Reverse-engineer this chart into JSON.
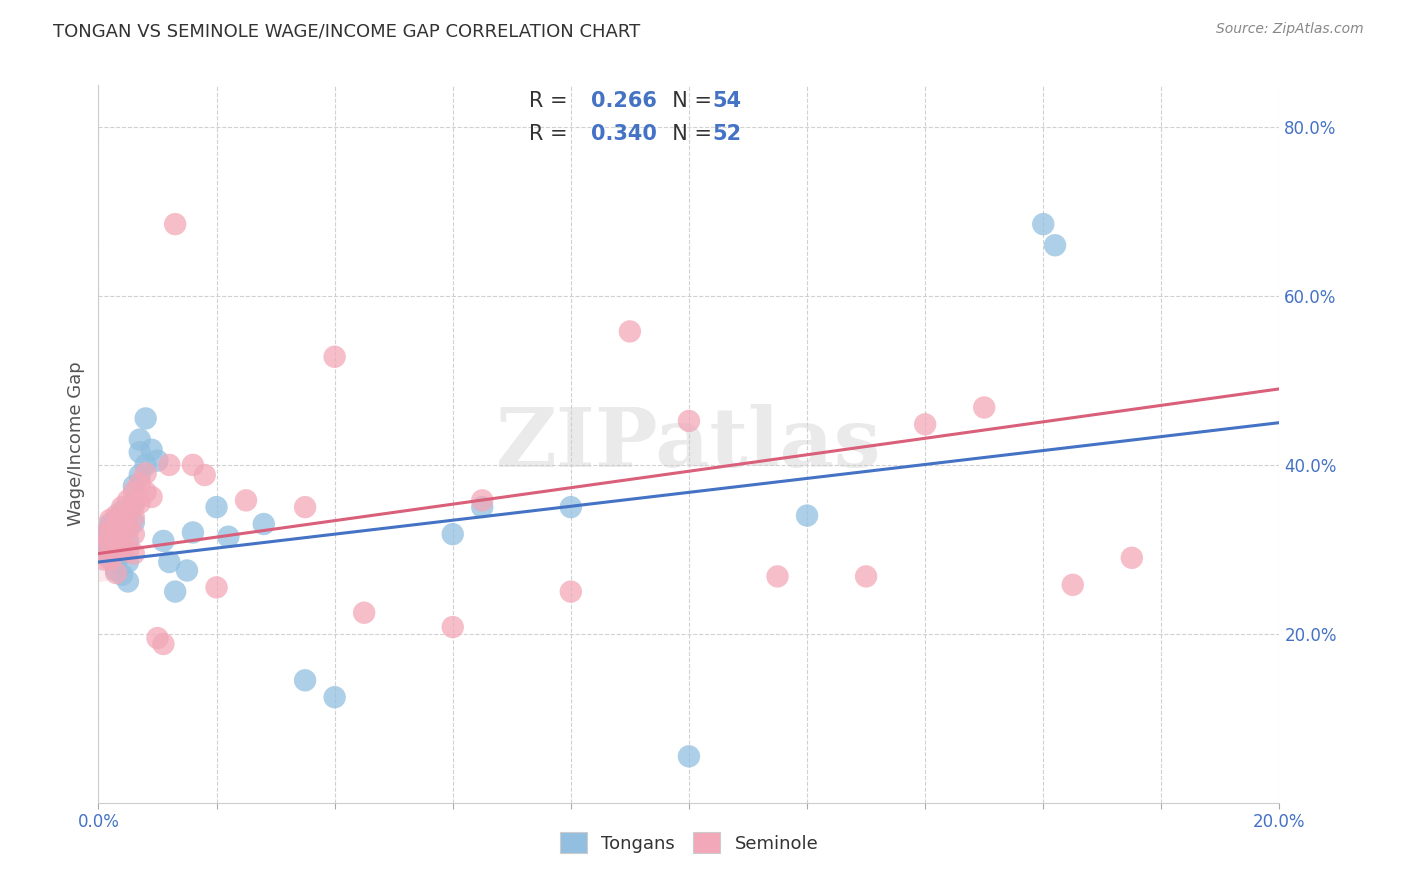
{
  "title": "TONGAN VS SEMINOLE WAGE/INCOME GAP CORRELATION CHART",
  "source": "Source: ZipAtlas.com",
  "ylabel": "Wage/Income Gap",
  "xlim": [
    0.0,
    0.2
  ],
  "ylim": [
    0.0,
    0.85
  ],
  "tongan_R": 0.266,
  "tongan_N": 54,
  "seminole_R": 0.34,
  "seminole_N": 52,
  "blue_color": "#92BFE0",
  "pink_color": "#F2A8B8",
  "blue_line_color": "#4472C4",
  "pink_line_color": "#D95F7A",
  "text_color_blue": "#4472C4",
  "background_color": "#FFFFFF",
  "watermark": "ZIPatlas",
  "grid_color": "#CCCCCC",
  "title_color": "#333333",
  "source_color": "#888888",
  "tick_label_color": "#4472C4",
  "ylabel_color": "#555555",
  "tongan_x": [
    0.001,
    0.001,
    0.001,
    0.001,
    0.002,
    0.002,
    0.002,
    0.002,
    0.002,
    0.002,
    0.003,
    0.003,
    0.003,
    0.003,
    0.003,
    0.003,
    0.003,
    0.004,
    0.004,
    0.004,
    0.004,
    0.004,
    0.005,
    0.005,
    0.005,
    0.005,
    0.005,
    0.006,
    0.006,
    0.006,
    0.007,
    0.007,
    0.007,
    0.008,
    0.008,
    0.009,
    0.01,
    0.011,
    0.012,
    0.013,
    0.015,
    0.016,
    0.02,
    0.022,
    0.028,
    0.035,
    0.04,
    0.06,
    0.065,
    0.08,
    0.1,
    0.12,
    0.16,
    0.162
  ],
  "tongan_y": [
    0.31,
    0.305,
    0.315,
    0.295,
    0.325,
    0.32,
    0.308,
    0.33,
    0.312,
    0.29,
    0.335,
    0.328,
    0.318,
    0.308,
    0.298,
    0.285,
    0.275,
    0.345,
    0.338,
    0.322,
    0.295,
    0.27,
    0.34,
    0.325,
    0.31,
    0.285,
    0.262,
    0.375,
    0.355,
    0.332,
    0.43,
    0.415,
    0.388,
    0.455,
    0.4,
    0.418,
    0.405,
    0.31,
    0.285,
    0.25,
    0.275,
    0.32,
    0.35,
    0.315,
    0.33,
    0.145,
    0.125,
    0.318,
    0.35,
    0.35,
    0.055,
    0.34,
    0.685,
    0.66
  ],
  "seminole_x": [
    0.001,
    0.001,
    0.001,
    0.002,
    0.002,
    0.002,
    0.002,
    0.003,
    0.003,
    0.003,
    0.003,
    0.003,
    0.004,
    0.004,
    0.004,
    0.004,
    0.005,
    0.005,
    0.005,
    0.005,
    0.006,
    0.006,
    0.006,
    0.006,
    0.006,
    0.007,
    0.007,
    0.008,
    0.008,
    0.009,
    0.01,
    0.011,
    0.012,
    0.013,
    0.016,
    0.018,
    0.02,
    0.025,
    0.035,
    0.04,
    0.045,
    0.06,
    0.065,
    0.08,
    0.09,
    0.1,
    0.115,
    0.13,
    0.14,
    0.15,
    0.165,
    0.175
  ],
  "seminole_y": [
    0.318,
    0.305,
    0.288,
    0.335,
    0.322,
    0.308,
    0.288,
    0.34,
    0.328,
    0.315,
    0.298,
    0.272,
    0.35,
    0.338,
    0.322,
    0.302,
    0.358,
    0.34,
    0.322,
    0.298,
    0.368,
    0.352,
    0.338,
    0.318,
    0.295,
    0.378,
    0.355,
    0.39,
    0.368,
    0.362,
    0.195,
    0.188,
    0.4,
    0.685,
    0.4,
    0.388,
    0.255,
    0.358,
    0.35,
    0.528,
    0.225,
    0.208,
    0.358,
    0.25,
    0.558,
    0.452,
    0.268,
    0.268,
    0.448,
    0.468,
    0.258,
    0.29
  ],
  "line_tongan_x0": 0.0,
  "line_tongan_x1": 0.2,
  "line_tongan_y0": 0.285,
  "line_tongan_y1": 0.45,
  "line_seminole_x0": 0.0,
  "line_seminole_x1": 0.2,
  "line_seminole_y0": 0.295,
  "line_seminole_y1": 0.49,
  "xtick_positions": [
    0.0,
    0.02,
    0.04,
    0.06,
    0.08,
    0.1,
    0.12,
    0.14,
    0.16,
    0.18,
    0.2
  ],
  "ytick_positions": [
    0.2,
    0.4,
    0.6,
    0.8
  ],
  "ytick_labels": [
    "20.0%",
    "40.0%",
    "60.0%",
    "80.0%"
  ]
}
